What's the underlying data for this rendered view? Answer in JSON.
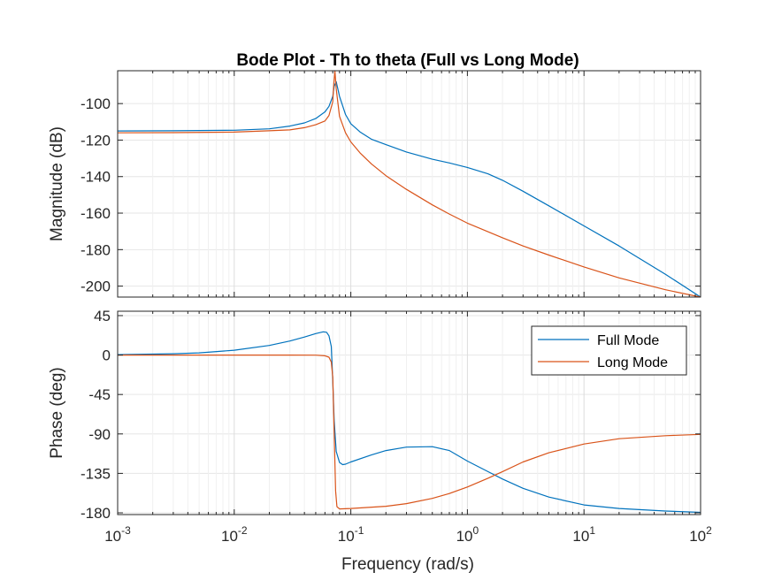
{
  "chart_data": {
    "type": "line",
    "title": "Bode Plot - Th to theta (Full vs Long Mode)",
    "xlabel": "Frequency  (rad/s)",
    "x_scale": "log",
    "xlim": [
      0.001,
      100
    ],
    "x_ticks": [
      {
        "value": 0.001,
        "base": "10",
        "exp": "-3"
      },
      {
        "value": 0.01,
        "base": "10",
        "exp": "-2"
      },
      {
        "value": 0.1,
        "base": "10",
        "exp": "-1"
      },
      {
        "value": 1,
        "base": "10",
        "exp": "0"
      },
      {
        "value": 10,
        "base": "10",
        "exp": "1"
      },
      {
        "value": 100,
        "base": "10",
        "exp": "2"
      }
    ],
    "colors": {
      "full": "#0072BD",
      "long": "#D95319",
      "axis": "#262626",
      "grid": "#e6e6e6"
    },
    "legend": {
      "location": "top-right",
      "entries": [
        "Full Mode",
        "Long Mode"
      ]
    },
    "magnitude": {
      "ylabel": "Magnitude (dB)",
      "ylim": [
        -206,
        -82
      ],
      "yticks": [
        -100,
        -120,
        -140,
        -160,
        -180,
        -200
      ],
      "ytick_labels": [
        "-100",
        "-120",
        "-140",
        "-160",
        "-180",
        "-200"
      ],
      "series": [
        {
          "name": "Full Mode",
          "x": [
            0.001,
            0.003,
            0.01,
            0.02,
            0.03,
            0.04,
            0.05,
            0.06,
            0.065,
            0.07,
            0.072,
            0.075,
            0.08,
            0.09,
            0.1,
            0.12,
            0.15,
            0.2,
            0.3,
            0.5,
            0.7,
            1,
            1.5,
            2,
            3,
            5,
            10,
            20,
            50,
            100
          ],
          "y": [
            -115,
            -114.9,
            -114.6,
            -113.8,
            -112.3,
            -110.6,
            -108.2,
            -104.5,
            -101.5,
            -96,
            -90.5,
            -88,
            -96,
            -106,
            -111,
            -115.5,
            -119.5,
            -122.5,
            -126.5,
            -130.5,
            -132.5,
            -135,
            -138.5,
            -142,
            -148,
            -156,
            -167,
            -178,
            -193.5,
            -206
          ]
        },
        {
          "name": "Long Mode",
          "x": [
            0.001,
            0.003,
            0.01,
            0.02,
            0.03,
            0.04,
            0.05,
            0.06,
            0.065,
            0.07,
            0.0715,
            0.073,
            0.075,
            0.08,
            0.09,
            0.1,
            0.12,
            0.15,
            0.2,
            0.3,
            0.5,
            0.7,
            1,
            2,
            3,
            5,
            10,
            20,
            50,
            100
          ],
          "y": [
            -116,
            -115.9,
            -115.6,
            -114.9,
            -114.4,
            -113.2,
            -111.6,
            -109.5,
            -106.5,
            -99,
            -89,
            -82,
            -92,
            -107,
            -116,
            -121,
            -127,
            -133,
            -139.5,
            -147,
            -155.5,
            -160.5,
            -165.5,
            -173.5,
            -178,
            -183,
            -189.5,
            -195.5,
            -202,
            -206
          ]
        }
      ]
    },
    "phase": {
      "ylabel": "Phase (deg)",
      "ylim": [
        -182,
        50
      ],
      "yticks": [
        45,
        0,
        -45,
        -90,
        -135,
        -180
      ],
      "ytick_labels": [
        "45",
        "0",
        "-45",
        "-90",
        "-135",
        "-180"
      ],
      "series": [
        {
          "name": "Full Mode",
          "x": [
            0.001,
            0.003,
            0.005,
            0.01,
            0.02,
            0.03,
            0.04,
            0.05,
            0.058,
            0.062,
            0.065,
            0.068,
            0.07,
            0.072,
            0.075,
            0.08,
            0.085,
            0.09,
            0.1,
            0.15,
            0.2,
            0.3,
            0.5,
            0.7,
            1,
            1.5,
            2,
            3,
            5,
            10,
            20,
            50,
            100
          ],
          "y": [
            0.5,
            1.5,
            2.5,
            5.5,
            11,
            16,
            20.5,
            24.5,
            26.5,
            26,
            22,
            10,
            -30,
            -75,
            -110,
            -122.5,
            -125,
            -124.5,
            -122,
            -114,
            -109,
            -105,
            -104.5,
            -109,
            -121,
            -133,
            -141.5,
            -152,
            -162,
            -171,
            -175,
            -178,
            -179.5
          ]
        },
        {
          "name": "Long Mode",
          "x": [
            0.001,
            0.01,
            0.03,
            0.05,
            0.06,
            0.065,
            0.068,
            0.07,
            0.072,
            0.074,
            0.076,
            0.08,
            0.1,
            0.2,
            0.3,
            0.5,
            0.7,
            1,
            1.5,
            2,
            3,
            5,
            10,
            20,
            50,
            100
          ],
          "y": [
            0,
            0,
            0,
            -0.1,
            -0.8,
            -2.5,
            -8,
            -25,
            -90,
            -155,
            -173,
            -175.5,
            -175,
            -172.5,
            -169.5,
            -163.5,
            -158,
            -150.5,
            -140.5,
            -133,
            -122,
            -111.5,
            -101.5,
            -95.5,
            -92,
            -90.5
          ]
        }
      ]
    }
  }
}
